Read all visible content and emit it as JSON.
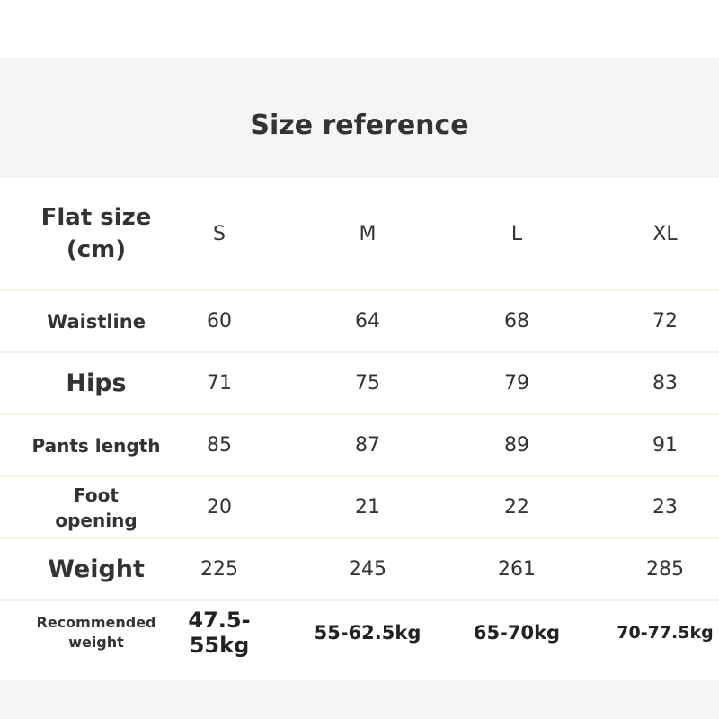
{
  "title": "Size reference",
  "table": {
    "header": {
      "label": "Flat size (cm)",
      "sizes": [
        "S",
        "M",
        "L",
        "XL"
      ]
    },
    "rows": [
      {
        "label": "Waistline",
        "values": [
          "60",
          "64",
          "68",
          "72"
        ]
      },
      {
        "label": "Hips",
        "values": [
          "71",
          "75",
          "79",
          "83"
        ]
      },
      {
        "label": "Pants length",
        "values": [
          "85",
          "87",
          "89",
          "91"
        ]
      },
      {
        "label": "Foot opening",
        "values": [
          "20",
          "21",
          "22",
          "23"
        ]
      },
      {
        "label": "Weight",
        "values": [
          "225",
          "245",
          "261",
          "285"
        ]
      },
      {
        "label": "Recommended weight",
        "values": [
          "47.5-55kg",
          "55-62.5kg",
          "65-70kg",
          "70-77.5kg"
        ]
      }
    ]
  }
}
